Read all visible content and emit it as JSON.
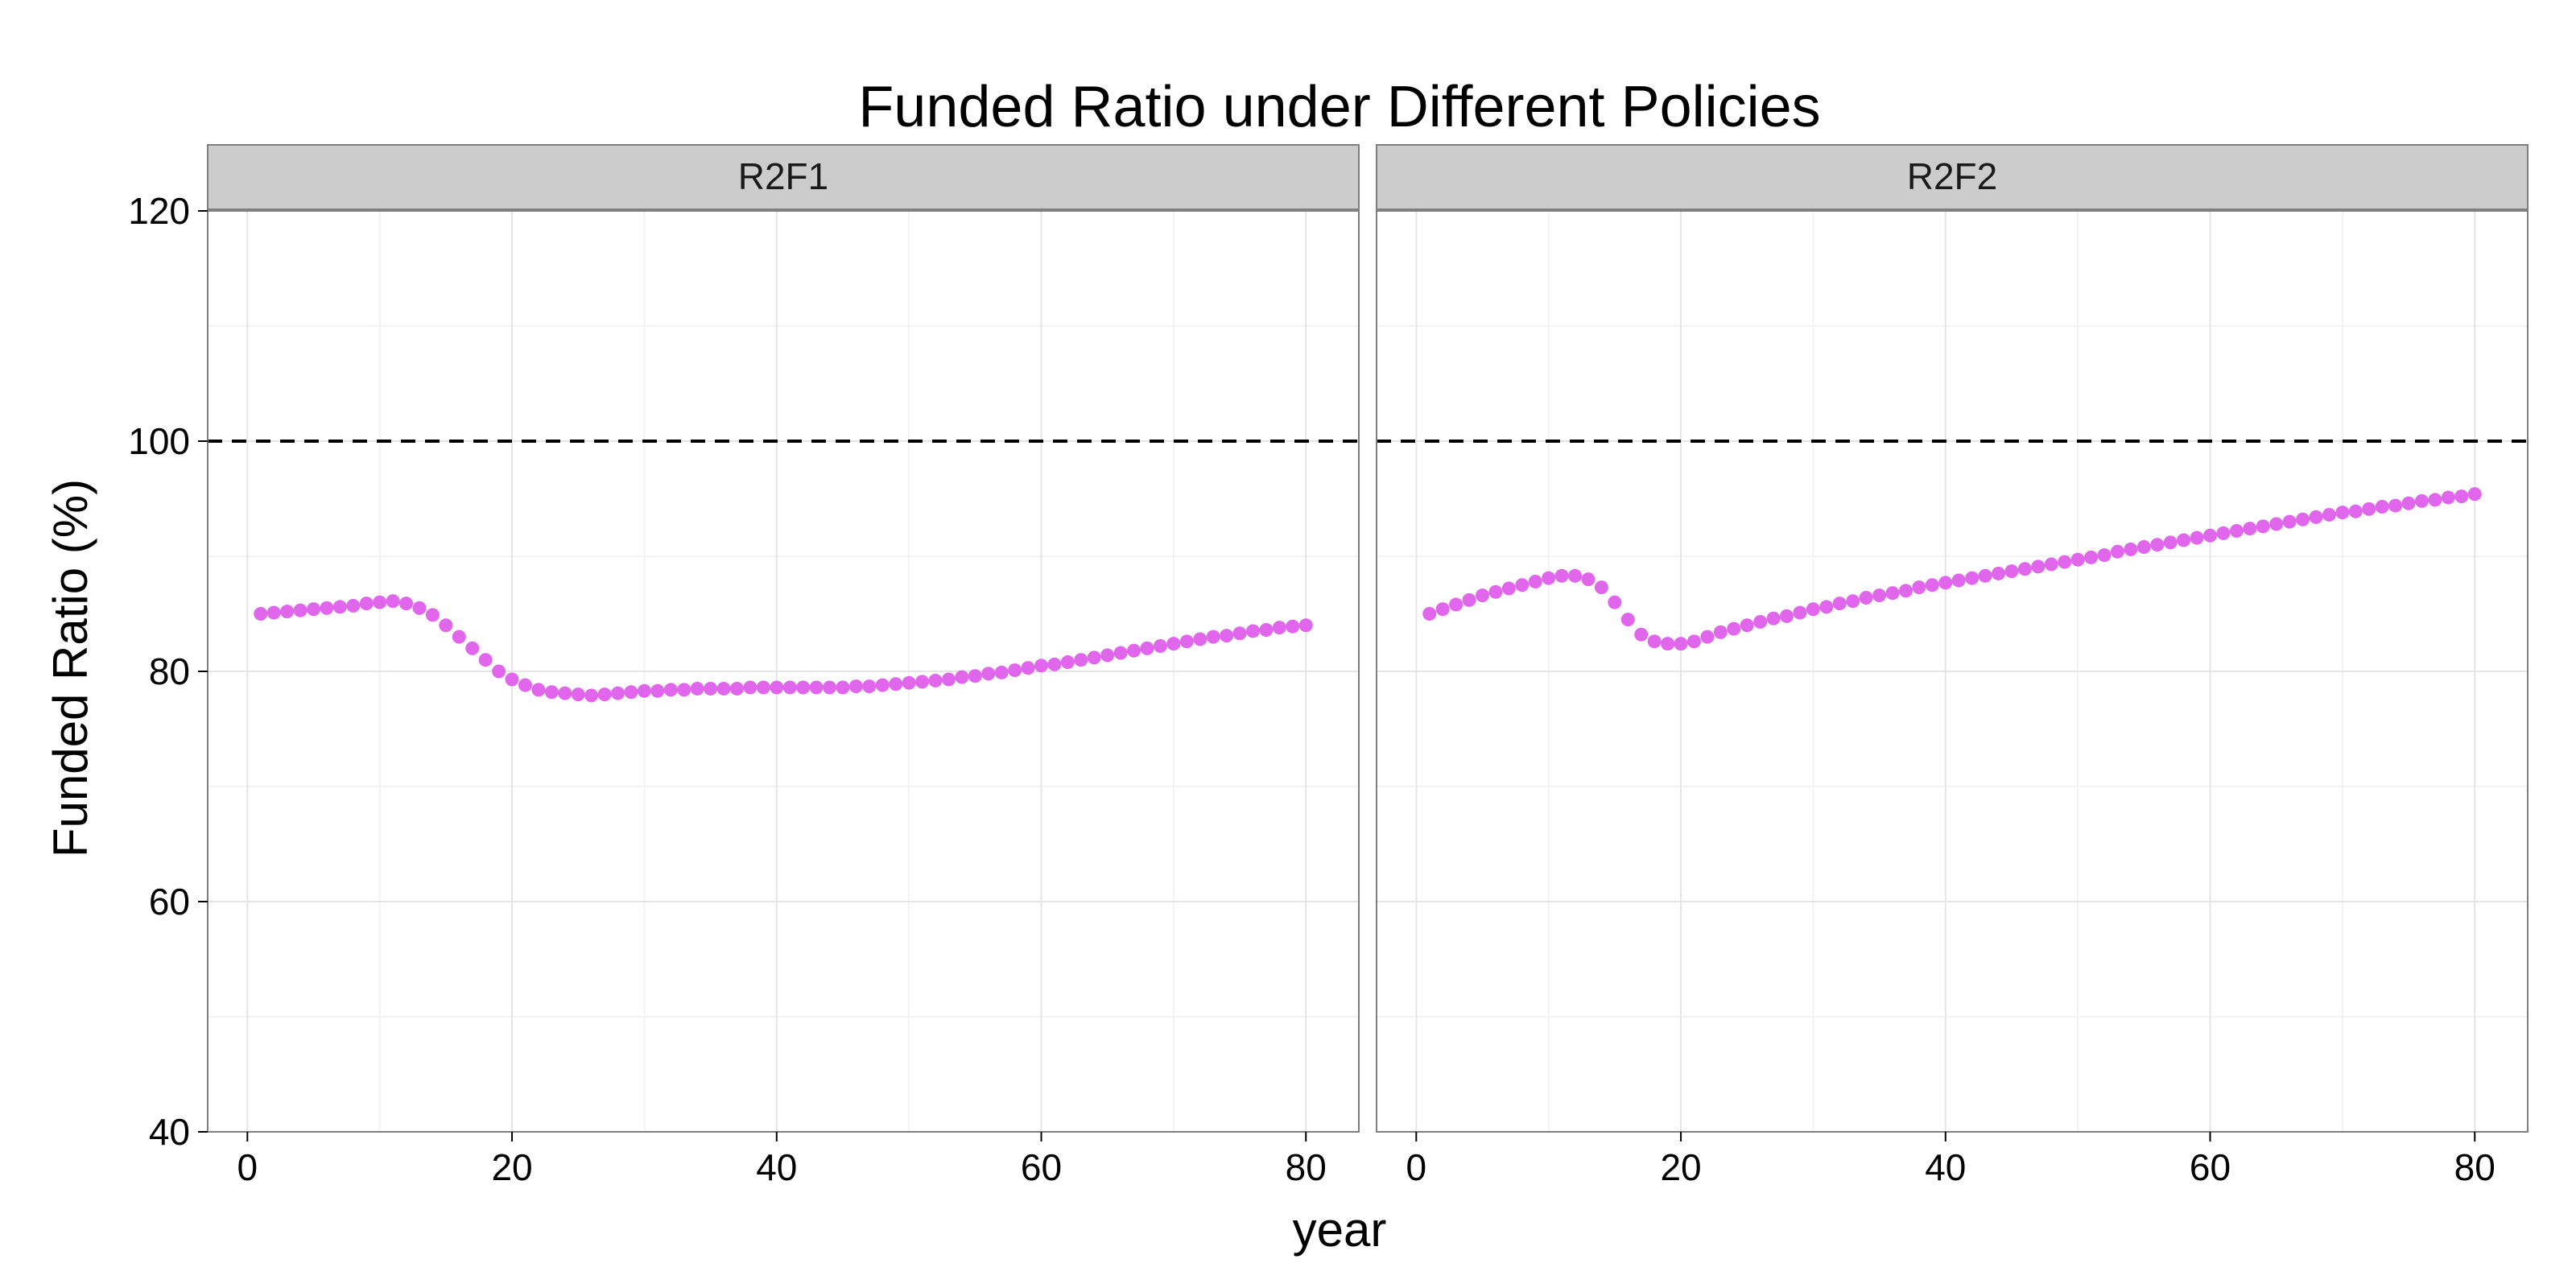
{
  "chart_data": {
    "type": "scatter",
    "title": "Funded Ratio under Different Policies",
    "xlabel": "year",
    "ylabel": "Funded Ratio (%)",
    "xlim": [
      -3,
      84
    ],
    "ylim": [
      40,
      120
    ],
    "x_ticks": [
      0,
      20,
      40,
      60,
      80
    ],
    "y_ticks": [
      40,
      60,
      80,
      100,
      120
    ],
    "grid": true,
    "reference_line": {
      "y": 100,
      "style": "dashed",
      "color": "#000000"
    },
    "point_color": "#e066ec",
    "panels": [
      {
        "label": "R2F1",
        "points": [
          [
            1,
            85.0
          ],
          [
            2,
            85.1
          ],
          [
            3,
            85.2
          ],
          [
            4,
            85.3
          ],
          [
            5,
            85.4
          ],
          [
            6,
            85.5
          ],
          [
            7,
            85.6
          ],
          [
            8,
            85.7
          ],
          [
            9,
            85.9
          ],
          [
            10,
            86.0
          ],
          [
            11,
            86.1
          ],
          [
            12,
            85.9
          ],
          [
            13,
            85.5
          ],
          [
            14,
            84.9
          ],
          [
            15,
            84.0
          ],
          [
            16,
            83.0
          ],
          [
            17,
            82.0
          ],
          [
            18,
            81.0
          ],
          [
            19,
            80.0
          ],
          [
            20,
            79.3
          ],
          [
            21,
            78.8
          ],
          [
            22,
            78.4
          ],
          [
            23,
            78.2
          ],
          [
            24,
            78.1
          ],
          [
            25,
            78.0
          ],
          [
            26,
            77.9
          ],
          [
            27,
            78.0
          ],
          [
            28,
            78.1
          ],
          [
            29,
            78.2
          ],
          [
            30,
            78.3
          ],
          [
            31,
            78.3
          ],
          [
            32,
            78.4
          ],
          [
            33,
            78.4
          ],
          [
            34,
            78.5
          ],
          [
            35,
            78.5
          ],
          [
            36,
            78.5
          ],
          [
            37,
            78.5
          ],
          [
            38,
            78.6
          ],
          [
            39,
            78.6
          ],
          [
            40,
            78.6
          ],
          [
            41,
            78.6
          ],
          [
            42,
            78.6
          ],
          [
            43,
            78.6
          ],
          [
            44,
            78.6
          ],
          [
            45,
            78.6
          ],
          [
            46,
            78.7
          ],
          [
            47,
            78.7
          ],
          [
            48,
            78.8
          ],
          [
            49,
            78.9
          ],
          [
            50,
            79.0
          ],
          [
            51,
            79.1
          ],
          [
            52,
            79.2
          ],
          [
            53,
            79.3
          ],
          [
            54,
            79.5
          ],
          [
            55,
            79.6
          ],
          [
            56,
            79.8
          ],
          [
            57,
            79.9
          ],
          [
            58,
            80.1
          ],
          [
            59,
            80.3
          ],
          [
            60,
            80.5
          ],
          [
            61,
            80.6
          ],
          [
            62,
            80.8
          ],
          [
            63,
            81.0
          ],
          [
            64,
            81.2
          ],
          [
            65,
            81.4
          ],
          [
            66,
            81.6
          ],
          [
            67,
            81.8
          ],
          [
            68,
            82.0
          ],
          [
            69,
            82.2
          ],
          [
            70,
            82.4
          ],
          [
            71,
            82.6
          ],
          [
            72,
            82.8
          ],
          [
            73,
            83.0
          ],
          [
            74,
            83.1
          ],
          [
            75,
            83.3
          ],
          [
            76,
            83.5
          ],
          [
            77,
            83.6
          ],
          [
            78,
            83.8
          ],
          [
            79,
            83.9
          ],
          [
            80,
            84.0
          ]
        ]
      },
      {
        "label": "R2F2",
        "points": [
          [
            1,
            85.0
          ],
          [
            2,
            85.4
          ],
          [
            3,
            85.8
          ],
          [
            4,
            86.2
          ],
          [
            5,
            86.6
          ],
          [
            6,
            86.9
          ],
          [
            7,
            87.2
          ],
          [
            8,
            87.5
          ],
          [
            9,
            87.8
          ],
          [
            10,
            88.1
          ],
          [
            11,
            88.3
          ],
          [
            12,
            88.3
          ],
          [
            13,
            88.0
          ],
          [
            14,
            87.3
          ],
          [
            15,
            86.0
          ],
          [
            16,
            84.5
          ],
          [
            17,
            83.2
          ],
          [
            18,
            82.6
          ],
          [
            19,
            82.4
          ],
          [
            20,
            82.4
          ],
          [
            21,
            82.6
          ],
          [
            22,
            83.0
          ],
          [
            23,
            83.4
          ],
          [
            24,
            83.7
          ],
          [
            25,
            84.0
          ],
          [
            26,
            84.3
          ],
          [
            27,
            84.6
          ],
          [
            28,
            84.8
          ],
          [
            29,
            85.1
          ],
          [
            30,
            85.4
          ],
          [
            31,
            85.6
          ],
          [
            32,
            85.9
          ],
          [
            33,
            86.1
          ],
          [
            34,
            86.4
          ],
          [
            35,
            86.6
          ],
          [
            36,
            86.8
          ],
          [
            37,
            87.0
          ],
          [
            38,
            87.3
          ],
          [
            39,
            87.5
          ],
          [
            40,
            87.7
          ],
          [
            41,
            87.9
          ],
          [
            42,
            88.1
          ],
          [
            43,
            88.3
          ],
          [
            44,
            88.5
          ],
          [
            45,
            88.7
          ],
          [
            46,
            88.9
          ],
          [
            47,
            89.1
          ],
          [
            48,
            89.3
          ],
          [
            49,
            89.5
          ],
          [
            50,
            89.7
          ],
          [
            51,
            89.9
          ],
          [
            52,
            90.1
          ],
          [
            53,
            90.4
          ],
          [
            54,
            90.6
          ],
          [
            55,
            90.8
          ],
          [
            56,
            91.0
          ],
          [
            57,
            91.2
          ],
          [
            58,
            91.4
          ],
          [
            59,
            91.6
          ],
          [
            60,
            91.8
          ],
          [
            61,
            92.0
          ],
          [
            62,
            92.2
          ],
          [
            63,
            92.4
          ],
          [
            64,
            92.6
          ],
          [
            65,
            92.8
          ],
          [
            66,
            93.0
          ],
          [
            67,
            93.2
          ],
          [
            68,
            93.4
          ],
          [
            69,
            93.6
          ],
          [
            70,
            93.8
          ],
          [
            71,
            93.9
          ],
          [
            72,
            94.1
          ],
          [
            73,
            94.3
          ],
          [
            74,
            94.4
          ],
          [
            75,
            94.6
          ],
          [
            76,
            94.8
          ],
          [
            77,
            94.9
          ],
          [
            78,
            95.1
          ],
          [
            79,
            95.2
          ],
          [
            80,
            95.4
          ]
        ]
      }
    ]
  }
}
